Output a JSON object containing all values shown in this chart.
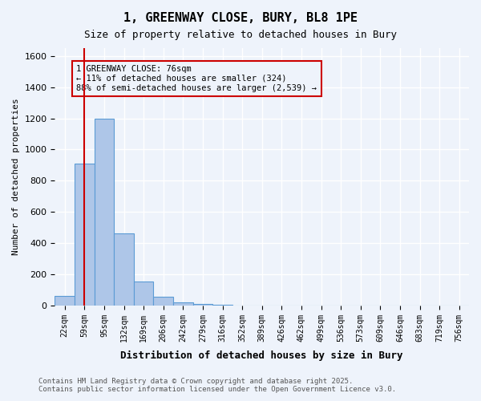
{
  "title_line1": "1, GREENWAY CLOSE, BURY, BL8 1PE",
  "title_line2": "Size of property relative to detached houses in Bury",
  "xlabel": "Distribution of detached houses by size in Bury",
  "ylabel": "Number of detached properties",
  "bins": [
    "22sqm",
    "59sqm",
    "95sqm",
    "132sqm",
    "169sqm",
    "206sqm",
    "242sqm",
    "279sqm",
    "316sqm",
    "352sqm",
    "389sqm",
    "426sqm",
    "462sqm",
    "499sqm",
    "536sqm",
    "573sqm",
    "609sqm",
    "646sqm",
    "683sqm",
    "719sqm",
    "756sqm"
  ],
  "values": [
    60,
    910,
    1200,
    460,
    155,
    55,
    20,
    10,
    5,
    0,
    0,
    0,
    0,
    0,
    0,
    0,
    0,
    0,
    0,
    0,
    0
  ],
  "bar_color": "#aec6e8",
  "bar_edge_color": "#5b9bd5",
  "vline_x": 1,
  "vline_color": "#cc0000",
  "annotation_box_text": "1 GREENWAY CLOSE: 76sqm\n← 11% of detached houses are smaller (324)\n88% of semi-detached houses are larger (2,539) →",
  "box_edge_color": "#cc0000",
  "ylim": [
    0,
    1650
  ],
  "yticks": [
    0,
    200,
    400,
    600,
    800,
    1000,
    1200,
    1400,
    1600
  ],
  "bg_color": "#eef3fb",
  "grid_color": "#ffffff",
  "footer_line1": "Contains HM Land Registry data © Crown copyright and database right 2025.",
  "footer_line2": "Contains public sector information licensed under the Open Government Licence v3.0."
}
